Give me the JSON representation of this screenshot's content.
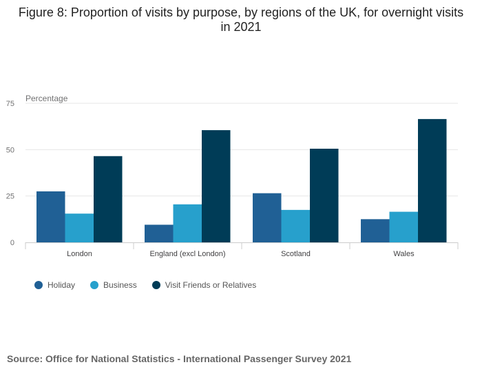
{
  "title": "Figure 8: Proportion of visits by purpose, by regions of the UK, for overnight visits in 2021",
  "source": "Source: Office for National Statistics - International Passenger Survey 2021",
  "colors": {
    "holiday": "#206095",
    "business": "#27a0cc",
    "vfr": "#003c57",
    "grid": "#e6e6e6",
    "axis": "#cccccc"
  },
  "legend": [
    "Holiday",
    "Business",
    "Visit Friends or Relatives"
  ],
  "chart_data": {
    "type": "bar",
    "title": "Figure 8: Proportion of visits by purpose, by regions of the UK, for overnight visits in 2021",
    "ylabel": "Percentage",
    "xlabel": "",
    "ylim": [
      0,
      75
    ],
    "yticks": [
      0,
      25,
      50,
      75
    ],
    "grid": true,
    "legend_position": "bottom-left",
    "categories": [
      "London",
      "England (excl London)",
      "Scotland",
      "Wales"
    ],
    "series": [
      {
        "name": "Holiday",
        "values": [
          27.5,
          9.5,
          26.5,
          12.5
        ]
      },
      {
        "name": "Business",
        "values": [
          15.5,
          20.5,
          17.5,
          16.5
        ]
      },
      {
        "name": "Visit Friends or Relatives",
        "values": [
          46.5,
          60.5,
          50.5,
          66.5
        ]
      }
    ]
  }
}
